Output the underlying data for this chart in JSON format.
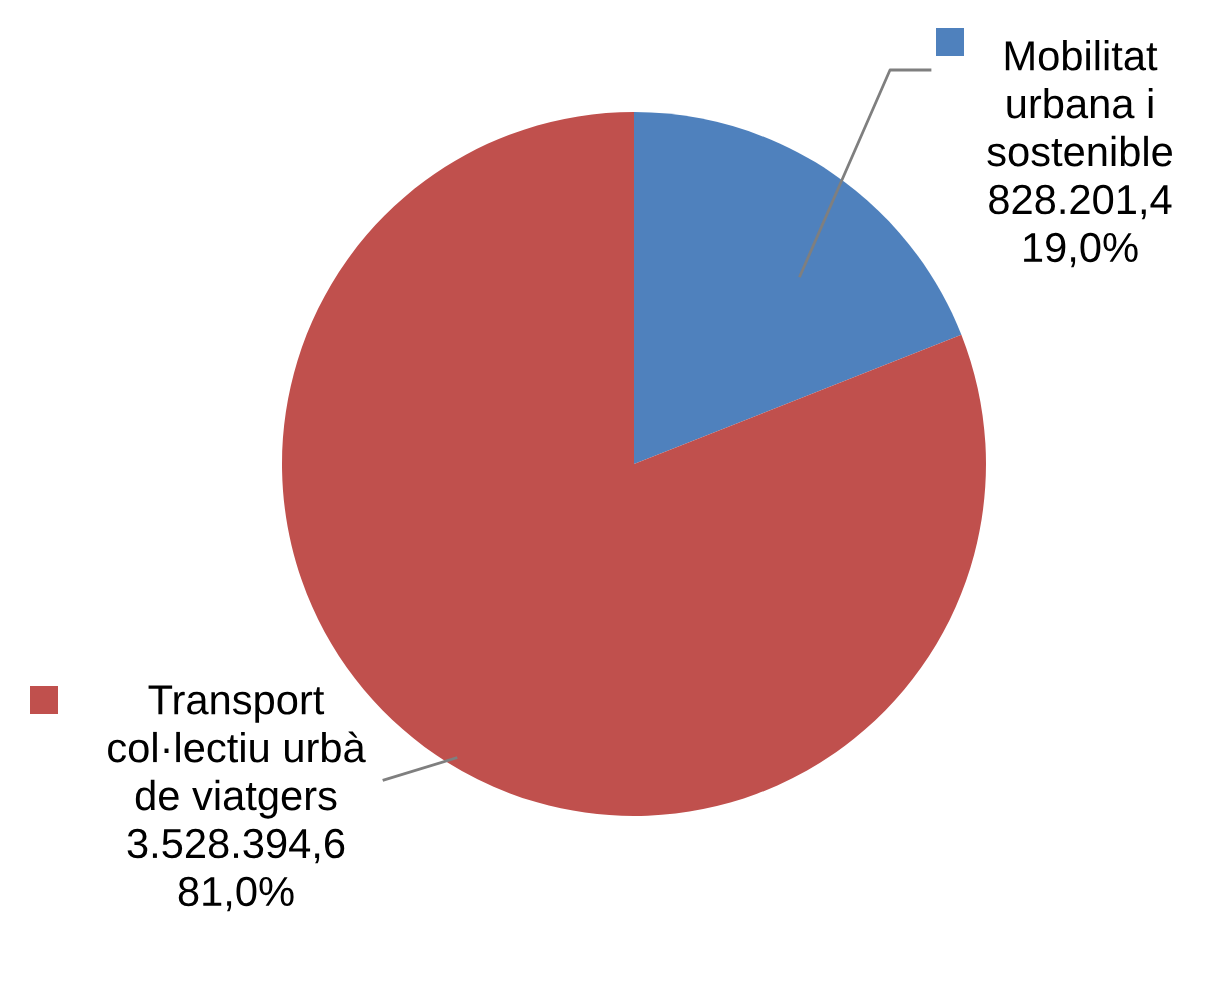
{
  "chart_data": {
    "type": "pie",
    "categories": [
      "Mobilitat urbana i sostenible",
      "Transport col·lectiu urbà de viatgers"
    ],
    "values": [
      828201.4,
      3528394.6
    ],
    "colors": [
      "#4f81bd",
      "#c0504d"
    ],
    "legend": "top right",
    "value_labels": [
      "828.201,4\n19,0%",
      "3.528.394,6\n81,0%"
    ]
  }
}
